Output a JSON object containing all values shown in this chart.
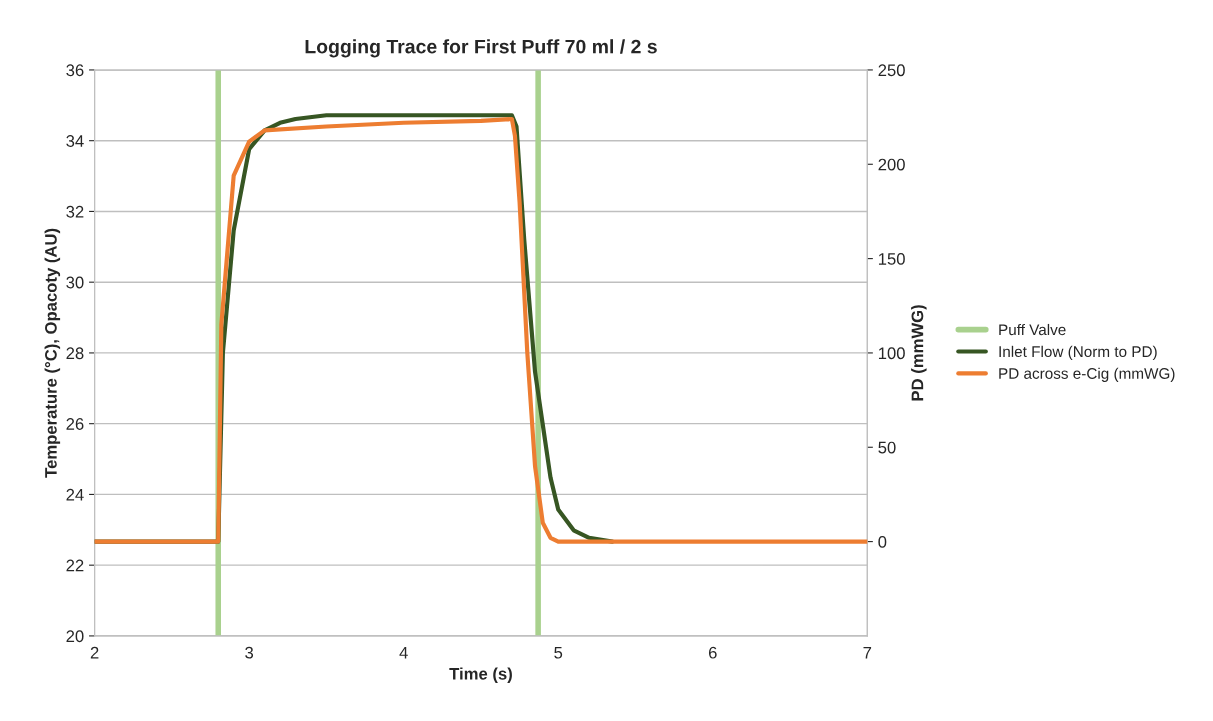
{
  "chart_data": {
    "type": "line",
    "title": "Logging Trace for First Puff 70 ml / 2 s",
    "xlabel": "Time (s)",
    "ylabel": "Temperature (°C), Opacoty (AU)",
    "y2label": "PD (mmWG)",
    "xlim": [
      2,
      7
    ],
    "xticks": [
      2,
      3,
      4,
      5,
      6,
      7
    ],
    "ylim": [
      20,
      36
    ],
    "yticks": [
      20,
      22,
      24,
      26,
      28,
      30,
      32,
      34,
      36
    ],
    "y2lim": [
      -50,
      250
    ],
    "y2ticks": [
      0,
      50,
      100,
      150,
      200,
      250
    ],
    "grid": "y",
    "legend": "right",
    "marker": "none",
    "line_style": "solid",
    "series": [
      {
        "name": "Puff Valve",
        "color": "#a9d18e",
        "x": [
          2.8,
          2.8,
          null,
          4.87,
          4.87
        ],
        "values": [
          20,
          36,
          null,
          36,
          20
        ]
      },
      {
        "name": "Inlet Flow (Norm to PD)",
        "color": "#375623",
        "axis": "y2",
        "x": [
          2,
          2.8,
          2.83,
          2.9,
          3.0,
          3.1,
          3.2,
          3.3,
          3.5,
          4.0,
          4.5,
          4.7,
          4.73,
          4.78,
          4.85,
          4.9,
          4.95,
          5.0,
          5.1,
          5.2,
          5.35
        ],
        "values": [
          0,
          0,
          100,
          165,
          208,
          218,
          222,
          224,
          226,
          226,
          226,
          226,
          220,
          160,
          90,
          62,
          34,
          17,
          6,
          2,
          0
        ]
      },
      {
        "name": "PD across e-Cig (mmWG)",
        "color": "#ed7d31",
        "axis": "y2",
        "x": [
          2,
          2.8,
          2.82,
          2.9,
          3.0,
          3.1,
          3.5,
          4.0,
          4.5,
          4.7,
          4.72,
          4.75,
          4.8,
          4.85,
          4.9,
          4.95,
          5.0,
          6.0,
          7.0
        ],
        "values": [
          0,
          0,
          115,
          194,
          212,
          218,
          220,
          222,
          223,
          224,
          215,
          180,
          100,
          40,
          10,
          2,
          0,
          0,
          0
        ]
      }
    ]
  }
}
